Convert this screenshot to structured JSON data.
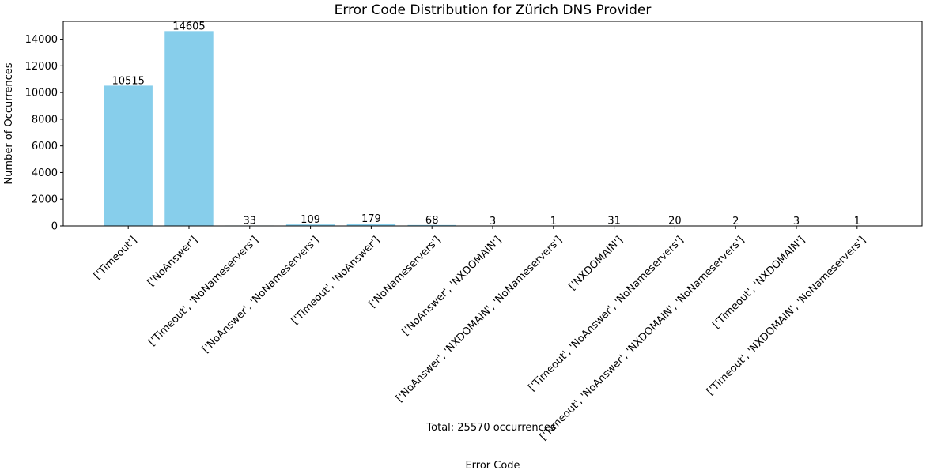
{
  "chart_data": {
    "type": "bar",
    "title": "Error Code Distribution for Zürich DNS Provider",
    "xlabel": "Error Code",
    "ylabel": "Number of Occurrences",
    "categories": [
      "['Timeout']",
      "['NoAnswer']",
      "['Timeout', 'NoNameservers']",
      "['NoAnswer', 'NoNameservers']",
      "['Timeout', 'NoAnswer']",
      "['NoNameservers']",
      "['NoAnswer', 'NXDOMAIN']",
      "['NoAnswer', 'NXDOMAIN', 'NoNameservers']",
      "['NXDOMAIN']",
      "['Timeout', 'NoAnswer', 'NoNameservers']",
      "['Timeout', 'NoAnswer', 'NXDOMAIN', 'NoNameservers']",
      "['Timeout', 'NXDOMAIN']",
      "['Timeout', 'NXDOMAIN', 'NoNameservers']"
    ],
    "values": [
      10515,
      14605,
      33,
      109,
      179,
      68,
      3,
      1,
      31,
      20,
      2,
      3,
      1
    ],
    "yticks": [
      0,
      2000,
      4000,
      6000,
      8000,
      10000,
      12000,
      14000
    ],
    "ylim": [
      0,
      15335
    ],
    "grid": false,
    "bar_color": "#87ceeb",
    "annotation": "Total: 25570 occurrences"
  }
}
